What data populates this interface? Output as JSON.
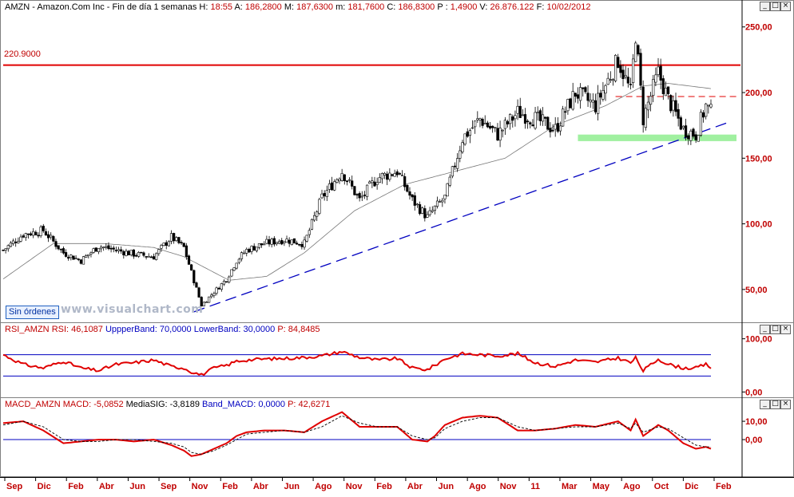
{
  "main": {
    "symbol": "AMZN",
    "name": "Amazon.Com Inc",
    "period": "Fin de día 1 semanas",
    "h_label": "H:",
    "h_value": "18:55",
    "a_label": "A:",
    "a_value": "186,2800",
    "m_label": "M:",
    "m_value": "187,6300",
    "mn_label": "m:",
    "mn_value": "181,7600",
    "c_label": "C:",
    "c_value": "186,8300",
    "p_label": "P :",
    "p_value": "1,4900",
    "v_label": "V:",
    "v_value": "26.876.122",
    "f_label": "F:",
    "f_value": "10/02/2012",
    "level_label": "220.9000",
    "sin_ordenes": "Sin órdenes",
    "watermark": "www.visualchart.com"
  },
  "rsi": {
    "name": "RSI_AMZN",
    "rsi_label": "RSI:",
    "rsi_value": "46,1087",
    "upper_label": "UppperBand:",
    "upper_value": "70,0000",
    "lower_label": "LowerBand:",
    "lower_value": "30,0000",
    "p_label": "P:",
    "p_value": "84,8485"
  },
  "macd": {
    "name": "MACD_AMZN",
    "macd_label": "MACD:",
    "macd_value": "-5,0852",
    "sig_label": "MediaSIG:",
    "sig_value": "-3,8189",
    "band_label": "Band_MACD:",
    "band_value": "0,0000",
    "p_label": "P:",
    "p_value": "42,6271"
  },
  "window_buttons": {
    "minimize": "_",
    "maximize": "□",
    "close": "×"
  },
  "colors": {
    "axis": "#c00000",
    "up": "#ffffff",
    "down": "#000000",
    "rsi": "#e00000",
    "macd": "#e00000",
    "band": "#0000c0",
    "support": "#a0f0a0",
    "resistance": "#e00000",
    "trend": "#0000c0"
  },
  "chart_data": [
    {
      "type": "candlestick",
      "title": "AMZN - Amazon.Com Inc - Fin de día 1 semanas",
      "ylim": [
        25,
        262
      ],
      "yticks": [
        50,
        100,
        150,
        200,
        250
      ],
      "ytick_labels": [
        "50,00",
        "100,00",
        "150,00",
        "200,00",
        "250,00"
      ],
      "xtick_labels": [
        "Sep",
        "Dic",
        "Feb",
        "Abr",
        "Jun",
        "Sep",
        "Nov",
        "Feb",
        "Abr",
        "Jun",
        "Ago",
        "Nov",
        "Feb",
        "Abr",
        "Jun",
        "Ago",
        "Nov",
        "11",
        "Mar",
        "May",
        "Ago",
        "Oct",
        "Dic",
        "Feb"
      ],
      "close_anchors_x": [
        0,
        8,
        16,
        24,
        31,
        38,
        45,
        52,
        60,
        67,
        72,
        75,
        79,
        84,
        89,
        93,
        97,
        104,
        112,
        120,
        127,
        135,
        142,
        149,
        157,
        163,
        169,
        172,
        176,
        183,
        190,
        197,
        205,
        212,
        220,
        228,
        236,
        245,
        250,
        252,
        255,
        261,
        265,
        271,
        276,
        280,
        282
      ],
      "close_anchors_y": [
        80,
        92,
        95,
        78,
        72,
        83,
        80,
        77,
        75,
        90,
        82,
        63,
        38,
        48,
        58,
        72,
        80,
        85,
        88,
        85,
        120,
        140,
        118,
        135,
        140,
        118,
        105,
        112,
        120,
        165,
        180,
        168,
        185,
        180,
        172,
        200,
        190,
        225,
        200,
        245,
        180,
        215,
        195,
        172,
        168,
        190,
        185
      ],
      "moving_average_x": [
        0,
        20,
        40,
        60,
        72,
        90,
        105,
        120,
        140,
        160,
        180,
        200,
        220,
        240,
        255,
        265,
        282
      ],
      "moving_average_y": [
        58,
        85,
        85,
        82,
        75,
        57,
        60,
        78,
        110,
        130,
        140,
        150,
        175,
        190,
        205,
        207,
        203
      ],
      "horizontal_lines": [
        {
          "name": "resistance",
          "value": 220.9
        },
        {
          "name": "resistance-dashed",
          "value": 197
        },
        {
          "name": "support-zone",
          "from": 163,
          "to": 168
        }
      ],
      "trendline": {
        "x": [
          76,
          290
        ],
        "y": [
          33,
          178
        ]
      }
    },
    {
      "type": "line",
      "name": "RSI",
      "ylim": [
        -10,
        110
      ],
      "yticks": [
        0,
        100
      ],
      "ytick_labels": [
        "0,00",
        "100,00"
      ],
      "bands": [
        70,
        30
      ],
      "anchors_x": [
        0,
        8,
        16,
        24,
        31,
        38,
        45,
        52,
        60,
        67,
        72,
        75,
        79,
        84,
        89,
        93,
        97,
        104,
        112,
        120,
        127,
        135,
        142,
        149,
        157,
        163,
        169,
        172,
        176,
        183,
        190,
        197,
        205,
        212,
        220,
        228,
        236,
        245,
        250,
        252,
        255,
        261,
        265,
        271,
        276,
        280,
        282
      ],
      "anchors_y": [
        70,
        52,
        45,
        58,
        45,
        40,
        52,
        55,
        60,
        48,
        45,
        38,
        32,
        45,
        50,
        58,
        60,
        62,
        63,
        65,
        68,
        76,
        65,
        60,
        63,
        45,
        42,
        50,
        62,
        72,
        70,
        68,
        72,
        55,
        48,
        60,
        56,
        64,
        55,
        64,
        40,
        62,
        52,
        45,
        45,
        52,
        46
      ]
    },
    {
      "type": "line",
      "name": "MACD",
      "ylim": [
        -20,
        17
      ],
      "yticks": [
        0,
        10
      ],
      "ytick_labels": [
        "0,00",
        "10,00"
      ],
      "bands": [
        0
      ],
      "series": [
        {
          "name": "MACD",
          "x": [
            0,
            8,
            16,
            24,
            31,
            38,
            45,
            52,
            60,
            67,
            72,
            75,
            79,
            84,
            89,
            93,
            97,
            104,
            112,
            120,
            127,
            135,
            142,
            149,
            157,
            163,
            169,
            172,
            176,
            183,
            190,
            197,
            205,
            212,
            220,
            228,
            236,
            245,
            250,
            252,
            255,
            261,
            265,
            271,
            276,
            280,
            282
          ],
          "y": [
            9,
            10,
            5,
            -2,
            -1,
            0,
            0,
            -1,
            0,
            -3,
            -6,
            -9,
            -8,
            -5,
            -2,
            2,
            4,
            5,
            5,
            4,
            10,
            15,
            7,
            7,
            7,
            0,
            -1,
            2,
            8,
            12,
            13,
            12,
            5,
            5,
            6,
            8,
            7,
            10,
            5,
            11,
            2,
            8,
            5,
            -2,
            -5,
            -4,
            -5
          ]
        },
        {
          "name": "MediaSIG",
          "x": [
            0,
            8,
            16,
            24,
            31,
            38,
            45,
            52,
            60,
            67,
            72,
            75,
            79,
            84,
            89,
            93,
            97,
            104,
            112,
            120,
            127,
            135,
            142,
            149,
            157,
            163,
            169,
            172,
            176,
            183,
            190,
            197,
            205,
            212,
            220,
            228,
            236,
            245,
            250,
            252,
            255,
            261,
            265,
            271,
            276,
            280,
            282
          ],
          "y": [
            8,
            10,
            7,
            0,
            -1,
            -1,
            0,
            0,
            -1,
            -2,
            -4,
            -7,
            -8,
            -6,
            -3,
            0,
            3,
            4,
            5,
            4,
            7,
            13,
            9,
            7,
            7,
            2,
            0,
            1,
            6,
            10,
            12,
            12,
            7,
            5,
            6,
            7,
            7,
            9,
            6,
            9,
            4,
            7,
            6,
            1,
            -3,
            -4,
            -4
          ]
        }
      ]
    }
  ]
}
